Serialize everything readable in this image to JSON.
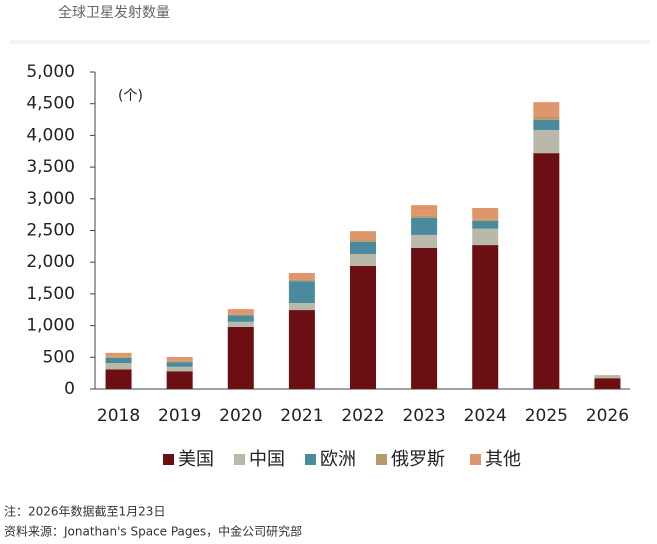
{
  "chart_data": {
    "type": "stacked_bar",
    "title": "全球卫星发射数量",
    "unit_label": "(个)",
    "categories": [
      "2018",
      "2019",
      "2020",
      "2021",
      "2022",
      "2023",
      "2024",
      "2025",
      "2026"
    ],
    "series": [
      {
        "name": "美国",
        "color": "#6b0f12",
        "values": [
          310,
          280,
          980,
          1245,
          1940,
          2225,
          2270,
          3720,
          170
        ]
      },
      {
        "name": "中国",
        "color": "#b9b9ab",
        "values": [
          100,
          70,
          80,
          110,
          190,
          205,
          260,
          365,
          40
        ]
      },
      {
        "name": "欧洲",
        "color": "#4a8a9c",
        "values": [
          80,
          70,
          100,
          345,
          190,
          270,
          120,
          160,
          0
        ]
      },
      {
        "name": "俄罗斯",
        "color": "#b89a68",
        "values": [
          20,
          25,
          20,
          20,
          30,
          30,
          20,
          45,
          5
        ]
      },
      {
        "name": "其他",
        "color": "#e0966c",
        "values": [
          60,
          60,
          80,
          110,
          140,
          170,
          185,
          235,
          5
        ]
      }
    ],
    "ylim": [
      0,
      5000
    ],
    "yticks": [
      0,
      500,
      {
        "value": 1000,
        "label": "1,000"
      },
      {
        "value": 1500,
        "label": "1,500"
      },
      {
        "value": 2000,
        "label": "2,000"
      },
      {
        "value": 2500,
        "label": "2,500"
      },
      {
        "value": 3000,
        "label": "3,000"
      },
      {
        "value": 3500,
        "label": "3,500"
      },
      {
        "value": 4000,
        "label": "4,000"
      },
      {
        "value": 4500,
        "label": "4,500"
      },
      {
        "value": 5000,
        "label": "5,000"
      }
    ],
    "notes": [
      "注：2026年数据截至1月23日",
      "资料来源：Jonathan's Space Pages，中金公司研究部"
    ]
  }
}
